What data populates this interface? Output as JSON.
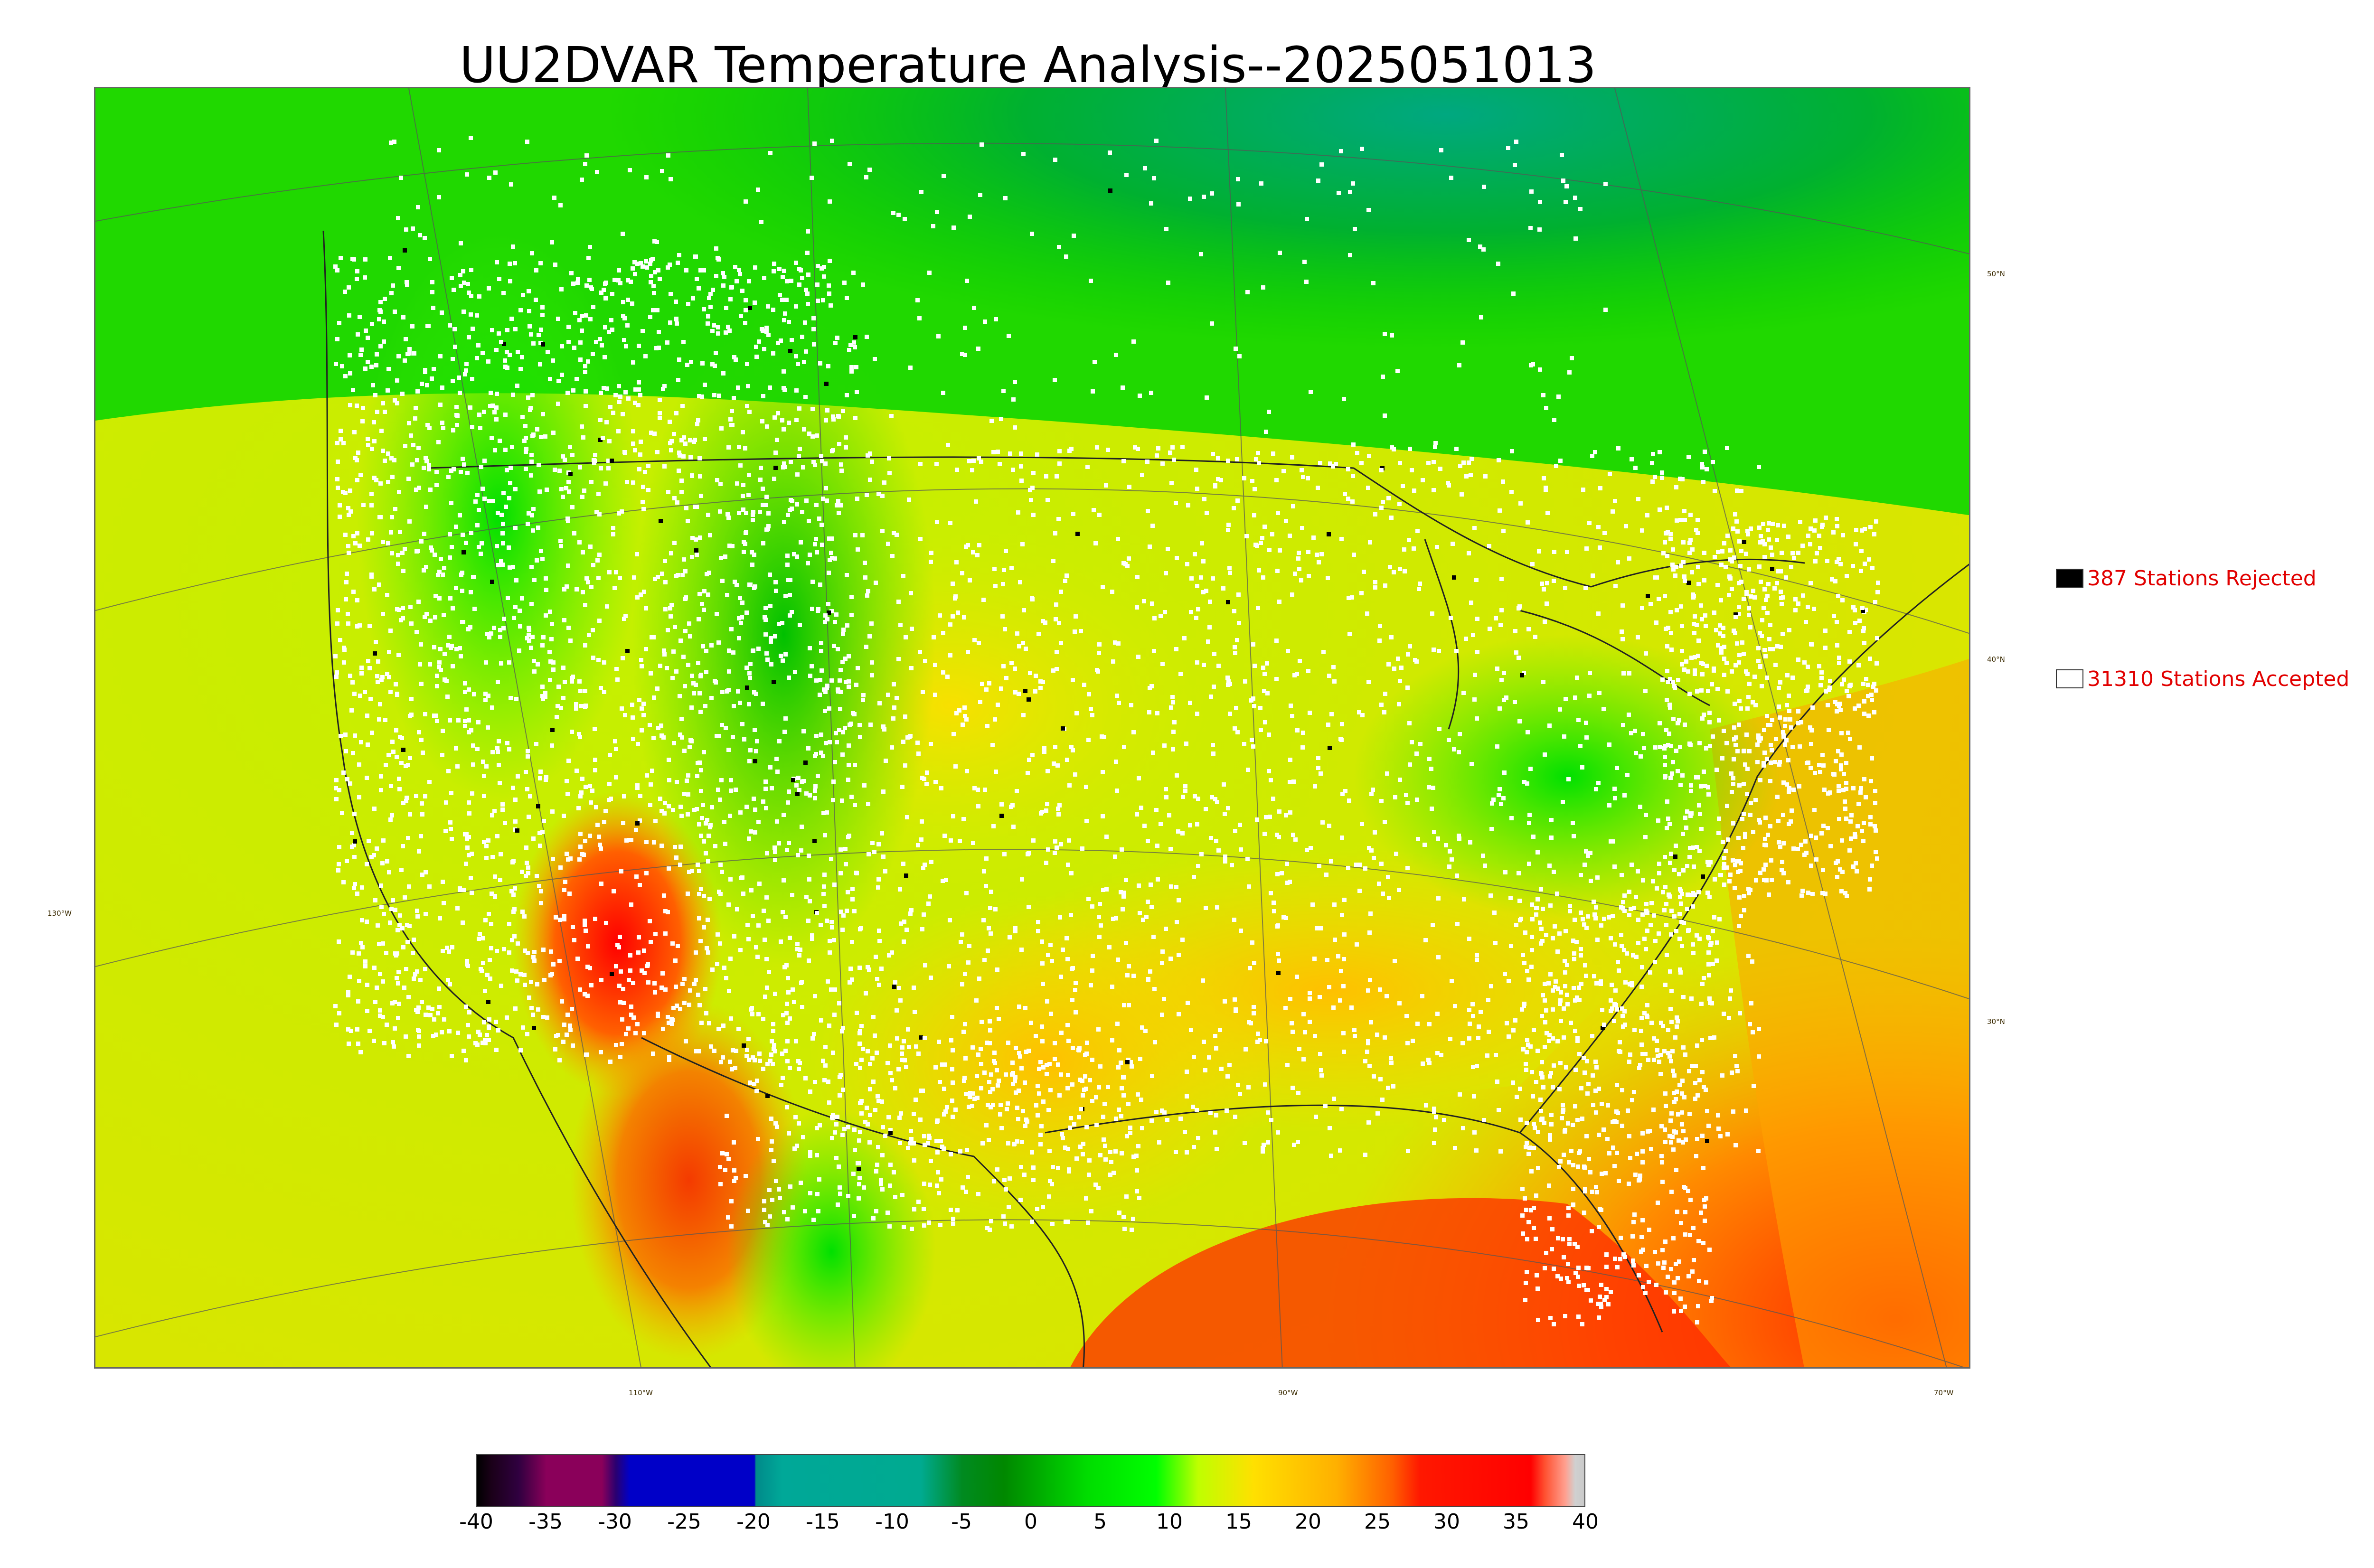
{
  "title": "UU2DVAR Temperature Analysis--2025051013",
  "map": {
    "longitude_labels": [
      "130°W",
      "110°W",
      "90°W",
      "70°W"
    ],
    "latitude_labels": [
      "50°N",
      "40°N",
      "30°N"
    ]
  },
  "legend": {
    "rejected": {
      "label": "387 Stations Rejected",
      "swatch_color": "#000000"
    },
    "accepted": {
      "label": "31310 Stations Accepted",
      "swatch_color": "#ffffff"
    },
    "text_color": "#e10000"
  },
  "colorbar": {
    "min": -40,
    "max": 40,
    "ticks": [
      "-40",
      "-35",
      "-30",
      "-25",
      "-20",
      "-15",
      "-10",
      "-5",
      "0",
      "5",
      "10",
      "15",
      "20",
      "25",
      "30",
      "35",
      "40"
    ],
    "stops": [
      {
        "value": -40,
        "color": "#000000"
      },
      {
        "value": -39,
        "color": "#1a0018"
      },
      {
        "value": -37,
        "color": "#300040"
      },
      {
        "value": -35,
        "color": "#8a005a"
      },
      {
        "value": -31,
        "color": "#8a005a"
      },
      {
        "value": -30,
        "color": "#2a0070"
      },
      {
        "value": -29,
        "color": "#0000c8"
      },
      {
        "value": -20,
        "color": "#0000c8"
      },
      {
        "value": -19.9,
        "color": "#008a8a"
      },
      {
        "value": -18,
        "color": "#00a898"
      },
      {
        "value": -8,
        "color": "#00aa90"
      },
      {
        "value": -5,
        "color": "#008a20"
      },
      {
        "value": -2,
        "color": "#008800"
      },
      {
        "value": 4,
        "color": "#00dd00"
      },
      {
        "value": 9,
        "color": "#00ff00"
      },
      {
        "value": 12,
        "color": "#bfff00"
      },
      {
        "value": 16,
        "color": "#ffe000"
      },
      {
        "value": 22,
        "color": "#ffb000"
      },
      {
        "value": 26,
        "color": "#ff6000"
      },
      {
        "value": 28,
        "color": "#ff1800"
      },
      {
        "value": 36,
        "color": "#ff0000"
      },
      {
        "value": 37,
        "color": "#ff5030"
      },
      {
        "value": 38.5,
        "color": "#ffa090"
      },
      {
        "value": 39.2,
        "color": "#d0d0d0"
      },
      {
        "value": 40,
        "color": "#c8c8c8"
      }
    ]
  }
}
